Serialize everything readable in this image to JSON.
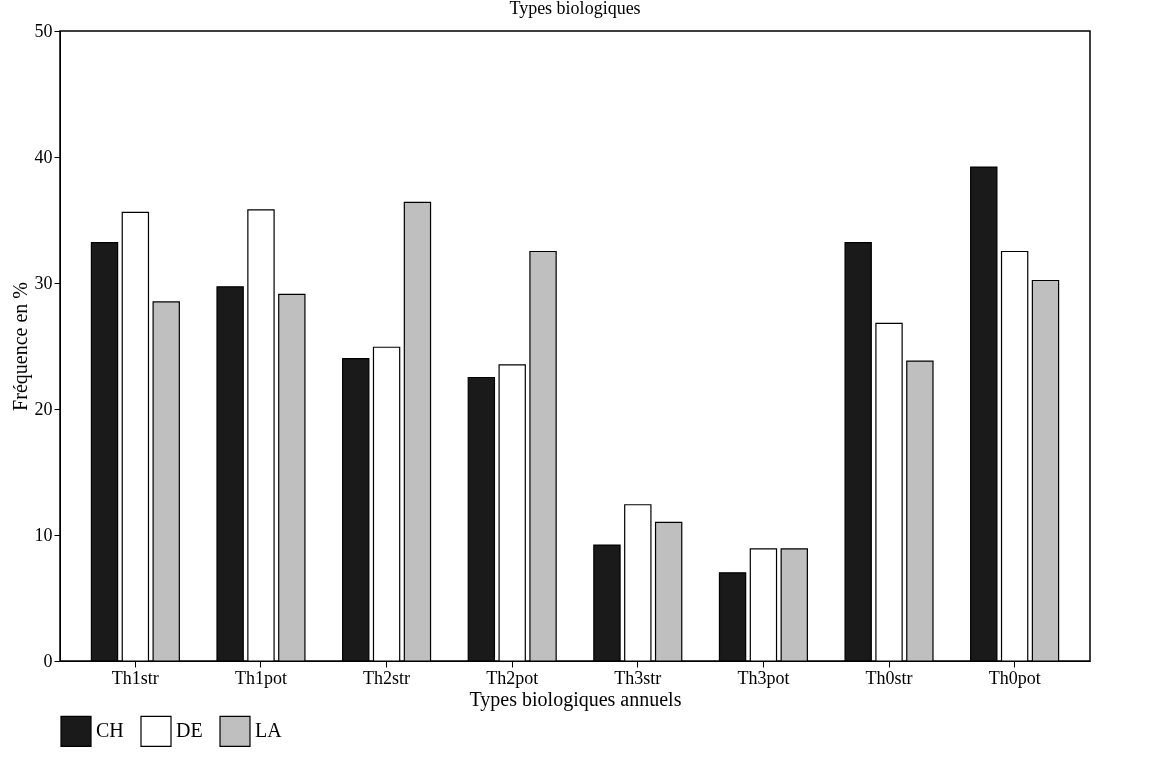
{
  "chart_data": {
    "type": "bar",
    "title": "Types biologiques",
    "xlabel": "Types biologiques annuels",
    "ylabel": "Fréquence en %",
    "categories": [
      "Th1str",
      "Th1pot",
      "Th2str",
      "Th2pot",
      "Th3str",
      "Th3pot",
      "Th0str",
      "Th0pot"
    ],
    "series": [
      {
        "name": "CH",
        "color": "#1a1a1a",
        "values": [
          33.2,
          29.7,
          24.0,
          22.5,
          9.2,
          7.0,
          33.2,
          39.2
        ]
      },
      {
        "name": "DE",
        "color": "#ffffff",
        "values": [
          35.6,
          35.8,
          24.9,
          23.5,
          12.4,
          8.9,
          26.8,
          32.5
        ]
      },
      {
        "name": "LA",
        "color": "#bfbfbf",
        "values": [
          28.5,
          29.1,
          36.4,
          32.5,
          11.0,
          8.9,
          23.8,
          30.2
        ]
      }
    ],
    "ylim": [
      0,
      50
    ],
    "yticks": [
      0,
      10,
      20,
      30,
      40,
      50
    ],
    "grid": false,
    "legend": "bottom"
  }
}
